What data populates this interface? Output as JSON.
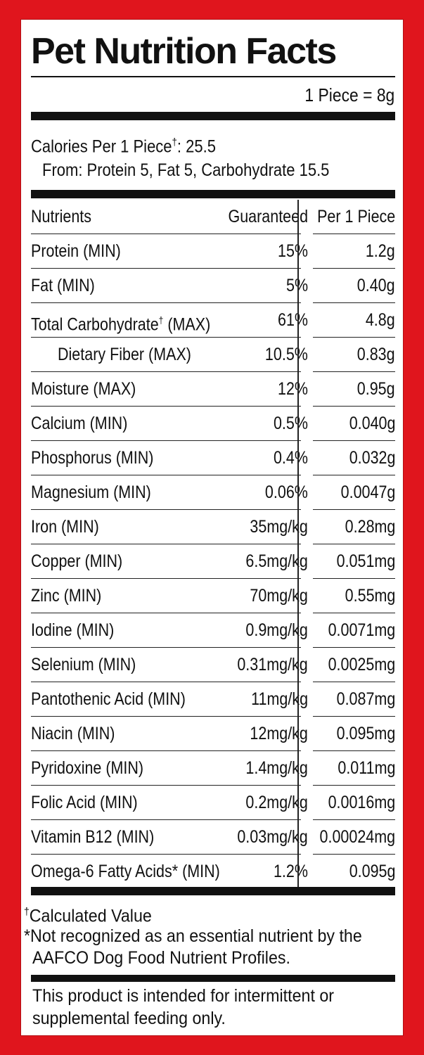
{
  "title": "Pet Nutrition Facts",
  "serving_size": "1 Piece = 8g",
  "calories": {
    "line1_label": "Calories Per 1 Piece",
    "line1_mark": "†",
    "line1_value": ": 25.5",
    "line2": "From: Protein 5, Fat 5, Carbohydrate 15.5"
  },
  "table": {
    "headers": {
      "nutrient": "Nutrients",
      "guaranteed": "Guaranteed",
      "per_piece": "Per 1 Piece"
    },
    "rows": [
      {
        "name": "Protein (MIN)",
        "guaranteed": "15%",
        "per_piece": "1.2g"
      },
      {
        "name": "Fat (MIN)",
        "guaranteed": "5%",
        "per_piece": "0.40g"
      },
      {
        "name": "Total Carbohydrate",
        "mark": "†",
        "suffix": " (MAX)",
        "guaranteed": "61%",
        "per_piece": "4.8g"
      },
      {
        "name": "Dietary Fiber (MAX)",
        "guaranteed": "10.5%",
        "per_piece": "0.83g",
        "indent": true
      },
      {
        "name": "Moisture (MAX)",
        "guaranteed": "12%",
        "per_piece": "0.95g"
      },
      {
        "name": "Calcium (MIN)",
        "guaranteed": "0.5%",
        "per_piece": "0.040g"
      },
      {
        "name": "Phosphorus (MIN)",
        "guaranteed": "0.4%",
        "per_piece": "0.032g"
      },
      {
        "name": "Magnesium (MIN)",
        "guaranteed": "0.06%",
        "per_piece": "0.0047g"
      },
      {
        "name": "Iron (MIN)",
        "guaranteed": "35mg/kg",
        "per_piece": "0.28mg"
      },
      {
        "name": "Copper (MIN)",
        "guaranteed": "6.5mg/kg",
        "per_piece": "0.051mg"
      },
      {
        "name": "Zinc (MIN)",
        "guaranteed": "70mg/kg",
        "per_piece": "0.55mg"
      },
      {
        "name": "Iodine (MIN)",
        "guaranteed": "0.9mg/kg",
        "per_piece": "0.0071mg"
      },
      {
        "name": "Selenium (MIN)",
        "guaranteed": "0.31mg/kg",
        "per_piece": "0.0025mg"
      },
      {
        "name": "Pantothenic Acid (MIN)",
        "guaranteed": "11mg/kg",
        "per_piece": "0.087mg"
      },
      {
        "name": "Niacin (MIN)",
        "guaranteed": "12mg/kg",
        "per_piece": "0.095mg"
      },
      {
        "name": "Pyridoxine (MIN)",
        "guaranteed": "1.4mg/kg",
        "per_piece": "0.011mg"
      },
      {
        "name": "Folic Acid (MIN)",
        "guaranteed": "0.2mg/kg",
        "per_piece": "0.0016mg"
      },
      {
        "name": "Vitamin B12 (MIN)",
        "guaranteed": "0.03mg/kg",
        "per_piece": "0.00024mg"
      },
      {
        "name": "Omega-6 Fatty Acids* (MIN)",
        "guaranteed": "1.2%",
        "per_piece": "0.095g"
      }
    ]
  },
  "footnotes": {
    "calc_mark": "†",
    "calc_text": "Calculated Value",
    "star_line1": "*Not recognized as an essential nutrient by the",
    "star_line2": "AAFCO Dog Food Nutrient Profiles."
  },
  "disclaimer": {
    "line1": "This product is intended for intermittent or",
    "line2": "supplemental feeding only."
  },
  "colors": {
    "background": "#e0151d",
    "panel": "#ffffff",
    "text": "#111111"
  }
}
